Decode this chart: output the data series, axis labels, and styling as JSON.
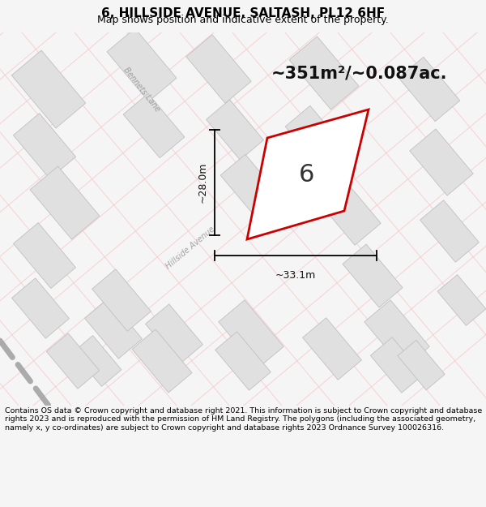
{
  "title": "6, HILLSIDE AVENUE, SALTASH, PL12 6HF",
  "subtitle": "Map shows position and indicative extent of the property.",
  "area_text": "~351m²/~0.087ac.",
  "property_label": "6",
  "dim_width": "~33.1m",
  "dim_height": "~28.0m",
  "footer": "Contains OS data © Crown copyright and database right 2021. This information is subject to Crown copyright and database rights 2023 and is reproduced with the permission of HM Land Registry. The polygons (including the associated geometry, namely x, y co-ordinates) are subject to Crown copyright and database rights 2023 Ordnance Survey 100026316.",
  "bg_color": "#f5f5f5",
  "map_bg": "#ffffff",
  "plot_color": "#cc0000",
  "road_color": "#f5c8c8",
  "building_fill": "#e0e0e0",
  "building_edge": "#c0c0c0",
  "road_text_color": "#999999",
  "title_fontsize": 11,
  "subtitle_fontsize": 9,
  "area_fontsize": 15,
  "footer_fontsize": 6.8
}
